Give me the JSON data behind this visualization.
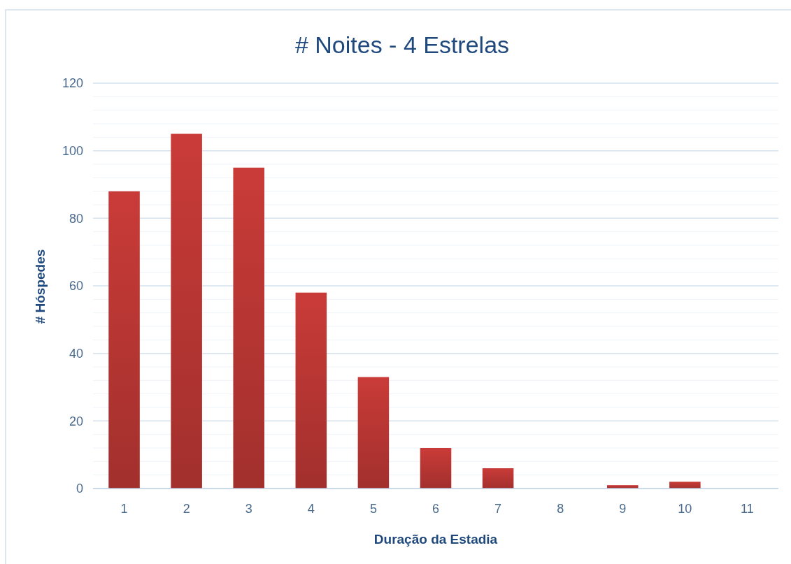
{
  "chart_data": {
    "type": "bar",
    "title": "# Noites - 4 Estrelas",
    "xlabel": "Duração da Estadia",
    "ylabel": "# Hóspedes",
    "categories": [
      "1",
      "2",
      "3",
      "4",
      "5",
      "6",
      "7",
      "8",
      "9",
      "10",
      "11"
    ],
    "values": [
      88,
      105,
      95,
      58,
      33,
      12,
      6,
      0,
      1,
      2,
      0
    ],
    "color": "#c93b38",
    "ylim": [
      0,
      120
    ],
    "yticks": [
      0,
      {
        "value": 4,
        "label": null
      },
      {
        "value": 8,
        "label": null
      },
      {
        "value": 12,
        "label": null
      },
      {
        "value": 16,
        "label": null
      },
      20,
      {
        "value": 24,
        "label": null
      },
      {
        "value": 28,
        "label": null
      },
      {
        "value": 32,
        "label": null
      },
      {
        "value": 36,
        "label": null
      },
      40,
      {
        "value": 44,
        "label": null
      },
      {
        "value": 48,
        "label": null
      },
      {
        "value": 52,
        "label": null
      },
      {
        "value": 56,
        "label": null
      },
      60,
      {
        "value": 64,
        "label": null
      },
      {
        "value": 68,
        "label": null
      },
      {
        "value": 72,
        "label": null
      },
      {
        "value": 76,
        "label": null
      },
      80,
      {
        "value": 84,
        "label": null
      },
      {
        "value": 88,
        "label": null
      },
      {
        "value": 92,
        "label": null
      },
      {
        "value": 96,
        "label": null
      },
      100,
      {
        "value": 104,
        "label": null
      },
      {
        "value": 108,
        "label": null
      },
      {
        "value": 112,
        "label": null
      },
      {
        "value": 116,
        "label": null
      },
      120
    ],
    "grid": true
  }
}
